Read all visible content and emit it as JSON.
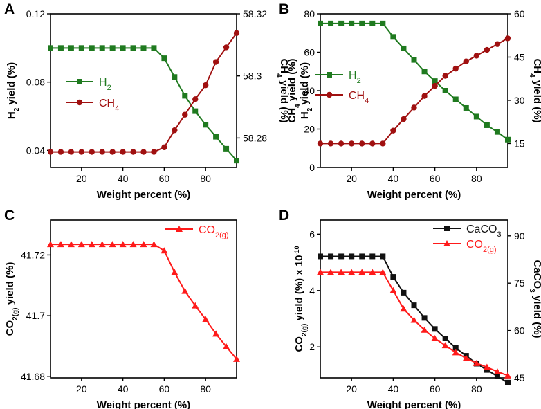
{
  "colors": {
    "green": "#1f7a1f",
    "darkred": "#a01010",
    "red": "#ff1a1a",
    "black": "#111111"
  },
  "chart_data": [
    {
      "id": "A",
      "panel_label": "A",
      "type": "line",
      "xlabel": "Weight percent (%)",
      "x": [
        5,
        10,
        15,
        20,
        25,
        30,
        35,
        40,
        45,
        50,
        55,
        60,
        65,
        70,
        75,
        80,
        85,
        90,
        95
      ],
      "xlim": [
        5,
        95
      ],
      "xticks": [
        20,
        40,
        60,
        80
      ],
      "left_axis": {
        "label": {
          "base": "H",
          "sub": "2",
          "rest": " yield (%)"
        },
        "lim": [
          0.03,
          0.12
        ],
        "ticks": [
          0.04,
          0.08,
          0.12
        ],
        "tick_labels": [
          "0.04",
          "0.08",
          "0.12"
        ]
      },
      "right_axis": {
        "label": {
          "base": "CH",
          "sub": "4",
          "rest": " yield (%)"
        },
        "lim": [
          58.2705,
          58.32
        ],
        "ticks": [
          58.28,
          58.3,
          58.32
        ],
        "tick_labels": [
          "58.28",
          "58.3",
          "58.32"
        ]
      },
      "series": [
        {
          "name": "H2",
          "legend": {
            "base": "H",
            "sub": "2"
          },
          "axis": "left",
          "marker": "square",
          "color": "green",
          "values": [
            0.1,
            0.1,
            0.1,
            0.1,
            0.1,
            0.1,
            0.1,
            0.1,
            0.1,
            0.1,
            0.1,
            0.094,
            0.083,
            0.072,
            0.063,
            0.055,
            0.048,
            0.041,
            0.034
          ]
        },
        {
          "name": "CH4",
          "legend": {
            "base": "CH",
            "sub": "4"
          },
          "axis": "right",
          "marker": "circle",
          "color": "darkred",
          "values": [
            58.2755,
            58.2755,
            58.2755,
            58.2755,
            58.2755,
            58.2755,
            58.2755,
            58.2755,
            58.2755,
            58.2755,
            58.2755,
            58.277,
            58.2825,
            58.2875,
            58.2925,
            58.297,
            58.3045,
            58.3092,
            58.3138
          ]
        }
      ],
      "legend_position": "middle-left"
    },
    {
      "id": "B",
      "panel_label": "B",
      "type": "line",
      "xlabel": "Weight percent (%)",
      "x": [
        5,
        10,
        15,
        20,
        25,
        30,
        35,
        40,
        45,
        50,
        55,
        60,
        65,
        70,
        75,
        80,
        85,
        90,
        95
      ],
      "xlim": [
        5,
        95
      ],
      "xticks": [
        20,
        40,
        60,
        80
      ],
      "left_axis": {
        "label": {
          "base": "CH",
          "sub": "4",
          "rest": " yield (%)"
        },
        "label2": {
          "base": "H",
          "sub": "2",
          "rest": " yield (%)"
        },
        "lim": [
          0,
          80
        ],
        "ticks": [
          0,
          20,
          40,
          60,
          80
        ],
        "tick_labels": [
          "0",
          "20",
          "40",
          "60",
          "80"
        ]
      },
      "right_axis": {
        "label": {
          "base": "CH",
          "sub": "4",
          "rest": " yield (%)"
        },
        "lim": [
          6.7,
          60
        ],
        "ticks": [
          15,
          30,
          45,
          60
        ],
        "tick_labels": [
          "15",
          "30",
          "45",
          "60"
        ]
      },
      "series": [
        {
          "name": "H2",
          "legend": {
            "base": "H",
            "sub": "2"
          },
          "axis": "left",
          "marker": "square",
          "color": "green",
          "values": [
            75,
            75,
            75,
            75,
            75,
            75,
            75,
            68,
            62,
            56,
            50,
            45,
            40,
            35.5,
            31,
            26.5,
            22,
            18.5,
            14.5
          ]
        },
        {
          "name": "CH4",
          "legend": {
            "base": "CH",
            "sub": "4"
          },
          "axis": "right",
          "marker": "circle",
          "color": "darkred",
          "values": [
            15,
            15,
            15,
            15,
            15,
            15,
            15,
            19.5,
            23.5,
            27.5,
            31.5,
            35,
            38.5,
            41,
            43.5,
            45.5,
            47.5,
            49.5,
            51.5
          ]
        }
      ],
      "legend_position": "middle-left"
    },
    {
      "id": "C",
      "panel_label": "C",
      "type": "line",
      "xlabel": "Weight percent (%)",
      "x": [
        5,
        10,
        15,
        20,
        25,
        30,
        35,
        40,
        45,
        50,
        55,
        60,
        65,
        70,
        75,
        80,
        85,
        90,
        95
      ],
      "xlim": [
        5,
        95
      ],
      "xticks": [
        20,
        40,
        60,
        80
      ],
      "left_axis": {
        "label": {
          "base": "CO",
          "sub": "2(g)",
          "rest": " yield (%)"
        },
        "lim": [
          41.6795,
          41.7315
        ],
        "ticks": [
          41.68,
          41.7,
          41.72
        ],
        "tick_labels": [
          "41.68",
          "41.7",
          "41.72"
        ]
      },
      "series": [
        {
          "name": "CO2(g)",
          "legend": {
            "base": "CO",
            "sub": "2(g)"
          },
          "axis": "left",
          "marker": "triangle",
          "color": "red",
          "values": [
            41.7235,
            41.7235,
            41.7235,
            41.7235,
            41.7235,
            41.7235,
            41.7235,
            41.7235,
            41.7235,
            41.7235,
            41.7235,
            41.7214,
            41.7143,
            41.7081,
            41.7033,
            41.6988,
            41.694,
            41.6898,
            41.6857
          ]
        }
      ],
      "legend_position": "top-right"
    },
    {
      "id": "D",
      "panel_label": "D",
      "type": "line",
      "xlabel": "Weight percent (%)",
      "x": [
        5,
        10,
        15,
        20,
        25,
        30,
        35,
        40,
        45,
        50,
        55,
        60,
        65,
        70,
        75,
        80,
        85,
        90,
        95
      ],
      "xlim": [
        5,
        95
      ],
      "xticks": [
        20,
        40,
        60,
        80
      ],
      "left_axis": {
        "label": {
          "base": "CO",
          "sub": "2(g)",
          "rest": " yield (%) x 10",
          "sup": "-10"
        },
        "lim": [
          0.9,
          6.5
        ],
        "ticks": [
          2,
          4,
          6
        ],
        "tick_labels": [
          "2",
          "4",
          "6"
        ]
      },
      "right_axis": {
        "label": {
          "base": "CaCO",
          "sub": "3",
          "rest": " yield (%)"
        },
        "lim": [
          45,
          95
        ],
        "ticks": [
          45,
          60,
          75,
          90
        ],
        "tick_labels": [
          "45",
          "60",
          "75",
          "90"
        ]
      },
      "series": [
        {
          "name": "CaCO3",
          "legend": {
            "base": "CaCO",
            "sub": "3"
          },
          "axis": "right",
          "marker": "square",
          "color": "black",
          "values": [
            83.5,
            83.5,
            83.5,
            83.5,
            83.5,
            83.5,
            83.5,
            77,
            72,
            68,
            64,
            60.5,
            57.5,
            54.5,
            52,
            49.5,
            47.5,
            45.5,
            43.5
          ]
        },
        {
          "name": "CO2(g)",
          "legend": {
            "base": "CO",
            "sub": "2(g)"
          },
          "axis": "left",
          "marker": "triangle",
          "color": "red",
          "values": [
            4.65,
            4.65,
            4.65,
            4.65,
            4.65,
            4.65,
            4.65,
            4.0,
            3.35,
            2.95,
            2.6,
            2.3,
            2.05,
            1.8,
            1.6,
            1.42,
            1.28,
            1.12,
            0.98
          ]
        }
      ],
      "legend_position": "top-right"
    }
  ]
}
